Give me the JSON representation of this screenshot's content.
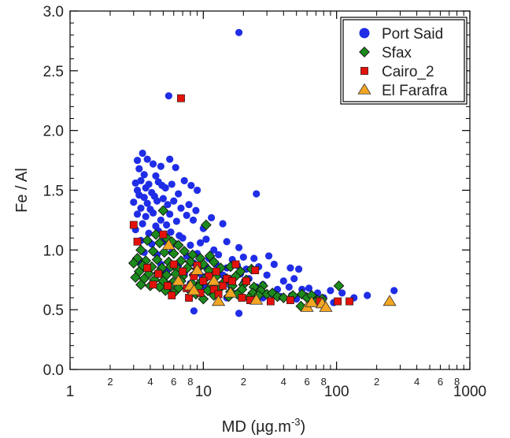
{
  "chart_data": {
    "type": "scatter",
    "xscale": "log",
    "yscale": "linear",
    "xlim": [
      1,
      1000
    ],
    "ylim": [
      0,
      3.0
    ],
    "xlabel": "MD (µg.m",
    "xlabel_sup": "-3",
    "xlabel_end": ")",
    "ylabel": "Fe / Al",
    "x_major_ticks": [
      {
        "value": 1,
        "label": "1"
      },
      {
        "value": 10,
        "label": "10"
      },
      {
        "value": 100,
        "label": "100"
      },
      {
        "value": 1000,
        "label": "1000"
      }
    ],
    "x_minor_ticks": [
      {
        "value": 2,
        "label": "2"
      },
      {
        "value": 4,
        "label": "4"
      },
      {
        "value": 6,
        "label": "6"
      },
      {
        "value": 8,
        "label": "8"
      },
      {
        "value": 20,
        "label": "2"
      },
      {
        "value": 40,
        "label": "4"
      },
      {
        "value": 60,
        "label": "6"
      },
      {
        "value": 80,
        "label": "8"
      },
      {
        "value": 200,
        "label": "2"
      },
      {
        "value": 400,
        "label": "4"
      },
      {
        "value": 600,
        "label": "6"
      },
      {
        "value": 800,
        "label": "8"
      }
    ],
    "x_unlabeled_minor": [
      3,
      5,
      7,
      9,
      30,
      50,
      70,
      90,
      300,
      500,
      700,
      900
    ],
    "y_ticks": [
      {
        "value": 0.0,
        "label": "0.0"
      },
      {
        "value": 0.5,
        "label": "0.5"
      },
      {
        "value": 1.0,
        "label": "1.0"
      },
      {
        "value": 1.5,
        "label": "1.5"
      },
      {
        "value": 2.0,
        "label": "2.0"
      },
      {
        "value": 2.5,
        "label": "2.5"
      },
      {
        "value": 3.0,
        "label": "3.0"
      }
    ],
    "y_minor_ticks": [
      0.1,
      0.2,
      0.3,
      0.4,
      0.6,
      0.7,
      0.8,
      0.9,
      1.1,
      1.2,
      1.3,
      1.4,
      1.6,
      1.7,
      1.8,
      1.9,
      2.1,
      2.2,
      2.3,
      2.4,
      2.6,
      2.7,
      2.8,
      2.9
    ],
    "grid": false,
    "legend_position": "top-right",
    "series": [
      {
        "name": "Port Said",
        "marker": "circle",
        "color": "#1f2de6",
        "points": [
          [
            18.5,
            2.82
          ],
          [
            5.5,
            2.29
          ],
          [
            3.2,
            1.75
          ],
          [
            3.5,
            1.81
          ],
          [
            3.8,
            1.76
          ],
          [
            3.3,
            1.68
          ],
          [
            4.2,
            1.72
          ],
          [
            4.8,
            1.7
          ],
          [
            5.6,
            1.76
          ],
          [
            6.2,
            1.69
          ],
          [
            3.6,
            1.63
          ],
          [
            4.4,
            1.62
          ],
          [
            3.1,
            1.56
          ],
          [
            3.4,
            1.58
          ],
          [
            3.9,
            1.55
          ],
          [
            4.6,
            1.57
          ],
          [
            5.2,
            1.52
          ],
          [
            3.2,
            1.5
          ],
          [
            3.7,
            1.52
          ],
          [
            4.1,
            1.48
          ],
          [
            4.9,
            1.54
          ],
          [
            5.8,
            1.55
          ],
          [
            7.2,
            1.58
          ],
          [
            8.1,
            1.54
          ],
          [
            9.0,
            1.5
          ],
          [
            3.3,
            1.46
          ],
          [
            3.6,
            1.44
          ],
          [
            4.3,
            1.45
          ],
          [
            5.0,
            1.43
          ],
          [
            6.5,
            1.47
          ],
          [
            3.0,
            1.4
          ],
          [
            3.8,
            1.39
          ],
          [
            4.5,
            1.41
          ],
          [
            5.4,
            1.38
          ],
          [
            6.0,
            1.41
          ],
          [
            3.4,
            1.35
          ],
          [
            4.0,
            1.34
          ],
          [
            3.2,
            1.3
          ],
          [
            3.7,
            1.28
          ],
          [
            4.2,
            1.31
          ],
          [
            4.8,
            1.25
          ],
          [
            5.6,
            1.3
          ],
          [
            6.8,
            1.35
          ],
          [
            7.8,
            1.38
          ],
          [
            8.8,
            1.33
          ],
          [
            3.5,
            1.22
          ],
          [
            4.4,
            1.2
          ],
          [
            5.3,
            1.21
          ],
          [
            6.3,
            1.24
          ],
          [
            7.5,
            1.29
          ],
          [
            3.1,
            1.17
          ],
          [
            3.9,
            1.14
          ],
          [
            4.6,
            1.16
          ],
          [
            5.7,
            1.15
          ],
          [
            6.6,
            1.12
          ],
          [
            8.4,
            1.25
          ],
          [
            10.0,
            1.18
          ],
          [
            11.5,
            1.27
          ],
          [
            14.0,
            1.22
          ],
          [
            25.0,
            1.47
          ],
          [
            3.4,
            1.08
          ],
          [
            4.1,
            1.05
          ],
          [
            5.0,
            1.07
          ],
          [
            6.2,
            1.05
          ],
          [
            7.0,
            1.1
          ],
          [
            8.0,
            1.04
          ],
          [
            9.5,
            1.06
          ],
          [
            10.5,
            1.09
          ],
          [
            12.0,
            1.0
          ],
          [
            15.0,
            1.07
          ],
          [
            18.5,
            1.02
          ],
          [
            3.6,
            0.98
          ],
          [
            4.5,
            0.96
          ],
          [
            5.8,
            0.98
          ],
          [
            7.5,
            0.95
          ],
          [
            9.0,
            0.97
          ],
          [
            11.0,
            0.93
          ],
          [
            13.0,
            0.96
          ],
          [
            16.5,
            0.92
          ],
          [
            20.0,
            0.94
          ],
          [
            24.0,
            0.93
          ],
          [
            31.0,
            0.95
          ],
          [
            3.3,
            0.9
          ],
          [
            4.8,
            0.88
          ],
          [
            6.5,
            0.87
          ],
          [
            8.5,
            0.89
          ],
          [
            10.5,
            0.86
          ],
          [
            12.5,
            0.88
          ],
          [
            15.0,
            0.85
          ],
          [
            18.0,
            0.87
          ],
          [
            21.0,
            0.84
          ],
          [
            26.0,
            0.86
          ],
          [
            34.0,
            0.88
          ],
          [
            45.0,
            0.85
          ],
          [
            52.0,
            0.84
          ],
          [
            5.3,
            0.82
          ],
          [
            7.2,
            0.8
          ],
          [
            9.8,
            0.78
          ],
          [
            11.8,
            0.81
          ],
          [
            14.0,
            0.79
          ],
          [
            17.0,
            0.77
          ],
          [
            19.0,
            0.8
          ],
          [
            22.0,
            0.76
          ],
          [
            30.0,
            0.79
          ],
          [
            40.0,
            0.74
          ],
          [
            48.0,
            0.76
          ],
          [
            8.0,
            0.72
          ],
          [
            10.0,
            0.7
          ],
          [
            13.5,
            0.71
          ],
          [
            16.0,
            0.7
          ],
          [
            20.0,
            0.72
          ],
          [
            25.0,
            0.69
          ],
          [
            28.0,
            0.71
          ],
          [
            36.0,
            0.67
          ],
          [
            44.0,
            0.69
          ],
          [
            55.0,
            0.67
          ],
          [
            62.0,
            0.68
          ],
          [
            90.0,
            0.66
          ],
          [
            270.0,
            0.66
          ],
          [
            12.0,
            0.66
          ],
          [
            18.0,
            0.64
          ],
          [
            33.0,
            0.63
          ],
          [
            38.0,
            0.61
          ],
          [
            46.0,
            0.62
          ],
          [
            58.0,
            0.62
          ],
          [
            72.0,
            0.64
          ],
          [
            80.0,
            0.6
          ],
          [
            110.0,
            0.64
          ],
          [
            135.0,
            0.6
          ],
          [
            170.0,
            0.62
          ],
          [
            8.5,
            0.49
          ],
          [
            18.5,
            0.47
          ],
          [
            15.0,
            0.6
          ],
          [
            22.0,
            0.6
          ],
          [
            28.0,
            0.6
          ],
          [
            50.0,
            0.59
          ],
          [
            65.0,
            0.58
          ],
          [
            95.0,
            0.56
          ]
        ]
      },
      {
        "name": "Sfax",
        "marker": "diamond",
        "color": "#1c8a1c",
        "points": [
          [
            5.0,
            1.33
          ],
          [
            10.5,
            1.21
          ],
          [
            4.4,
            1.13
          ],
          [
            5.3,
            1.1
          ],
          [
            3.8,
            1.08
          ],
          [
            4.7,
            1.06
          ],
          [
            5.8,
            1.07
          ],
          [
            6.5,
            1.04
          ],
          [
            3.4,
            1.0
          ],
          [
            4.2,
            0.99
          ],
          [
            5.1,
            0.98
          ],
          [
            6.0,
            0.97
          ],
          [
            7.2,
            0.99
          ],
          [
            8.3,
            0.96
          ],
          [
            9.5,
            0.93
          ],
          [
            11.2,
            0.95
          ],
          [
            3.2,
            0.93
          ],
          [
            3.7,
            0.91
          ],
          [
            4.5,
            0.92
          ],
          [
            5.5,
            0.9
          ],
          [
            6.8,
            0.91
          ],
          [
            8.0,
            0.9
          ],
          [
            10.0,
            0.88
          ],
          [
            12.0,
            0.9
          ],
          [
            3.0,
            0.89
          ],
          [
            3.5,
            0.87
          ],
          [
            4.1,
            0.86
          ],
          [
            4.9,
            0.85
          ],
          [
            5.7,
            0.86
          ],
          [
            6.4,
            0.84
          ],
          [
            7.6,
            0.85
          ],
          [
            9.0,
            0.84
          ],
          [
            11.0,
            0.83
          ],
          [
            13.5,
            0.85
          ],
          [
            16.0,
            0.86
          ],
          [
            19.0,
            0.82
          ],
          [
            23.0,
            0.84
          ],
          [
            3.3,
            0.82
          ],
          [
            3.9,
            0.8
          ],
          [
            4.6,
            0.81
          ],
          [
            5.3,
            0.79
          ],
          [
            6.2,
            0.8
          ],
          [
            7.0,
            0.78
          ],
          [
            8.5,
            0.79
          ],
          [
            10.5,
            0.77
          ],
          [
            12.5,
            0.78
          ],
          [
            15.0,
            0.76
          ],
          [
            17.5,
            0.78
          ],
          [
            21.0,
            0.75
          ],
          [
            3.1,
            0.77
          ],
          [
            3.6,
            0.76
          ],
          [
            4.3,
            0.75
          ],
          [
            5.0,
            0.74
          ],
          [
            5.9,
            0.73
          ],
          [
            6.8,
            0.74
          ],
          [
            8.2,
            0.72
          ],
          [
            9.6,
            0.73
          ],
          [
            11.5,
            0.71
          ],
          [
            14.0,
            0.72
          ],
          [
            16.5,
            0.7
          ],
          [
            20.0,
            0.71
          ],
          [
            24.0,
            0.69
          ],
          [
            28.0,
            0.7
          ],
          [
            3.4,
            0.71
          ],
          [
            4.0,
            0.7
          ],
          [
            4.7,
            0.69
          ],
          [
            5.6,
            0.7
          ],
          [
            6.5,
            0.68
          ],
          [
            7.8,
            0.67
          ],
          [
            9.2,
            0.69
          ],
          [
            10.8,
            0.66
          ],
          [
            13.0,
            0.67
          ],
          [
            16.0,
            0.65
          ],
          [
            19.5,
            0.67
          ],
          [
            23.5,
            0.64
          ],
          [
            27.0,
            0.66
          ],
          [
            30.0,
            0.63
          ],
          [
            5.2,
            0.66
          ],
          [
            6.0,
            0.64
          ],
          [
            8.8,
            0.63
          ],
          [
            12.0,
            0.62
          ],
          [
            15.5,
            0.61
          ],
          [
            18.0,
            0.63
          ],
          [
            22.0,
            0.6
          ],
          [
            26.0,
            0.62
          ],
          [
            33.0,
            0.64
          ],
          [
            36.0,
            0.61
          ],
          [
            40.0,
            0.6
          ],
          [
            47.0,
            0.62
          ],
          [
            55.0,
            0.63
          ],
          [
            60.0,
            0.6
          ],
          [
            65.0,
            0.62
          ],
          [
            72.0,
            0.58
          ],
          [
            78.0,
            0.59
          ],
          [
            54.0,
            0.53
          ],
          [
            104.0,
            0.7
          ],
          [
            10.0,
            0.59
          ]
        ]
      },
      {
        "name": "Cairo_2",
        "marker": "square",
        "color": "#e3120b",
        "points": [
          [
            6.8,
            2.27
          ],
          [
            3.0,
            1.21
          ],
          [
            5.0,
            1.13
          ],
          [
            3.2,
            1.07
          ],
          [
            6.0,
            0.88
          ],
          [
            9.0,
            0.87
          ],
          [
            12.5,
            0.82
          ],
          [
            17.5,
            0.88
          ],
          [
            24.5,
            0.83
          ],
          [
            3.8,
            0.85
          ],
          [
            4.6,
            0.8
          ],
          [
            7.0,
            0.82
          ],
          [
            8.5,
            0.78
          ],
          [
            11.0,
            0.78
          ],
          [
            10.0,
            0.74
          ],
          [
            15.0,
            0.76
          ],
          [
            16.5,
            0.74
          ],
          [
            21.0,
            0.74
          ],
          [
            14.0,
            0.7
          ],
          [
            4.2,
            0.71
          ],
          [
            5.4,
            0.7
          ],
          [
            7.5,
            0.68
          ],
          [
            12.0,
            0.67
          ],
          [
            9.5,
            0.64
          ],
          [
            13.0,
            0.63
          ],
          [
            5.8,
            0.62
          ],
          [
            7.8,
            0.6
          ],
          [
            19.5,
            0.6
          ],
          [
            22.5,
            0.58
          ],
          [
            32.0,
            0.57
          ],
          [
            45.0,
            0.58
          ],
          [
            75.0,
            0.57
          ],
          [
            102.0,
            0.57
          ],
          [
            125.0,
            0.57
          ]
        ]
      },
      {
        "name": "El Farafra",
        "marker": "triangle",
        "color": "#f4a623",
        "points": [
          [
            5.5,
            1.04
          ],
          [
            9.0,
            0.83
          ],
          [
            12.0,
            0.74
          ],
          [
            6.5,
            0.74
          ],
          [
            8.0,
            0.7
          ],
          [
            16.0,
            0.64
          ],
          [
            8.5,
            0.66
          ],
          [
            25.0,
            0.58
          ],
          [
            13.0,
            0.57
          ],
          [
            60.0,
            0.52
          ],
          [
            65.0,
            0.56
          ],
          [
            78.0,
            0.55
          ],
          [
            83.0,
            0.52
          ],
          [
            250.0,
            0.57
          ]
        ]
      }
    ]
  }
}
